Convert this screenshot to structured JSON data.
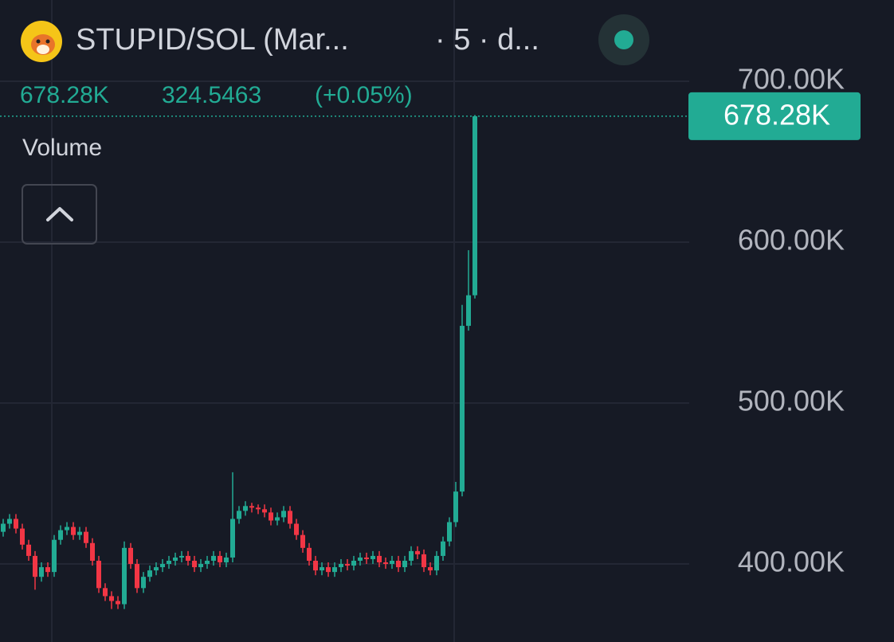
{
  "header": {
    "pair": "STUPID/SOL (Mar...",
    "interval": "· 5 · d...",
    "value": "678.28K",
    "change": "324.5463",
    "change_pct": "(+0.05%)",
    "indicator": "Volume"
  },
  "chart_data": {
    "type": "candlestick",
    "up_color": "#22ab94",
    "down_color": "#f23645",
    "grid": true,
    "ylim": [
      351.5,
      750.5
    ],
    "yticks": [
      {
        "value": 400,
        "label": "400.00K"
      },
      {
        "value": 500,
        "label": "500.00K"
      },
      {
        "value": 600,
        "label": "600.00K"
      },
      {
        "value": 700,
        "label": "700.00K"
      }
    ],
    "last_price_label": "678.28K",
    "open": [
      420,
      425,
      428,
      422,
      412,
      405,
      392,
      398,
      395,
      415,
      421,
      423,
      418,
      420,
      413,
      402,
      385,
      380,
      377,
      375,
      410,
      400,
      385,
      392,
      396,
      398,
      400,
      402,
      404,
      405,
      402,
      398,
      400,
      402,
      405,
      401,
      404,
      428,
      433,
      436,
      435,
      434,
      432,
      427,
      429,
      433,
      425,
      418,
      410,
      402,
      396,
      398,
      395,
      398,
      400,
      399,
      402,
      404,
      403,
      405,
      401,
      400,
      402,
      398,
      402,
      408,
      406,
      398,
      396,
      405,
      414,
      426,
      445,
      548,
      567
    ],
    "high": [
      428,
      431,
      431,
      425,
      415,
      408,
      401,
      401,
      418,
      424,
      426,
      426,
      423,
      423,
      416,
      405,
      388,
      383,
      380,
      414,
      413,
      403,
      395,
      399,
      401,
      403,
      405,
      407,
      408,
      408,
      405,
      403,
      405,
      408,
      408,
      407,
      457,
      436,
      439,
      438,
      437,
      437,
      435,
      432,
      436,
      436,
      428,
      421,
      413,
      405,
      401,
      401,
      401,
      403,
      403,
      405,
      407,
      407,
      408,
      408,
      404,
      405,
      405,
      405,
      411,
      411,
      409,
      401,
      408,
      417,
      429,
      451,
      561,
      595,
      679
    ],
    "low": [
      417,
      422,
      419,
      409,
      402,
      384,
      389,
      392,
      392,
      412,
      418,
      415,
      415,
      410,
      399,
      382,
      377,
      372,
      372,
      372,
      397,
      382,
      382,
      389,
      393,
      395,
      397,
      399,
      401,
      399,
      395,
      395,
      397,
      399,
      398,
      398,
      401,
      425,
      430,
      432,
      431,
      429,
      424,
      424,
      426,
      422,
      415,
      407,
      399,
      393,
      393,
      392,
      392,
      395,
      396,
      396,
      399,
      400,
      400,
      398,
      397,
      397,
      395,
      395,
      399,
      403,
      395,
      393,
      393,
      402,
      411,
      423,
      442,
      545,
      565
    ],
    "close": [
      425,
      428,
      422,
      412,
      405,
      392,
      398,
      395,
      415,
      421,
      423,
      418,
      420,
      413,
      402,
      385,
      380,
      377,
      375,
      410,
      400,
      385,
      392,
      396,
      398,
      400,
      402,
      404,
      405,
      402,
      398,
      400,
      402,
      405,
      401,
      404,
      428,
      433,
      436,
      435,
      434,
      432,
      427,
      429,
      433,
      425,
      418,
      410,
      402,
      396,
      398,
      395,
      398,
      400,
      399,
      402,
      404,
      403,
      405,
      401,
      400,
      402,
      398,
      402,
      408,
      406,
      398,
      396,
      405,
      414,
      426,
      445,
      548,
      567,
      678.28
    ]
  }
}
